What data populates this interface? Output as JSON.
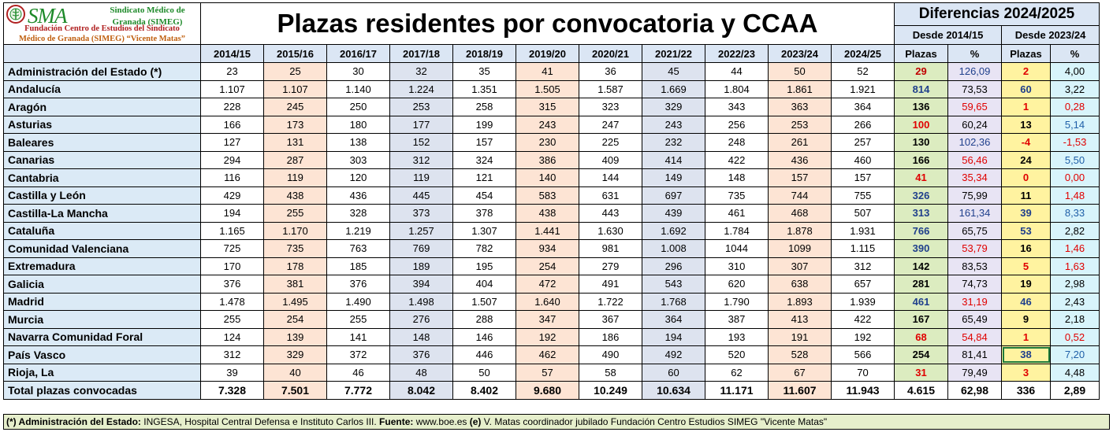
{
  "logo": {
    "brand": "SMA",
    "sub_line1": "Sindicato Médico de",
    "sub_line2": "Granada (SIMEG)",
    "foundation_line1": "Fundación Centro de Estudios del Sindicato",
    "foundation_line2": "Médico de Granada (SIMEG) “Vicente Matas”"
  },
  "title": "Plazas residentes por convocatoria y CCAA",
  "diff_header": {
    "title": "Diferencias 2024/2025",
    "since_a": "Desde 2014/15",
    "since_b": "Desde 2023/24",
    "col_plazas": "Plazas",
    "col_pct": "%"
  },
  "years": [
    "2014/15",
    "2015/16",
    "2016/17",
    "2017/18",
    "2018/19",
    "2019/20",
    "2020/21",
    "2021/22",
    "2022/23",
    "2023/24",
    "2024/25"
  ],
  "rows": [
    {
      "name": "Administración del Estado (*)",
      "values": [
        "23",
        "25",
        "30",
        "32",
        "35",
        "41",
        "36",
        "45",
        "44",
        "50",
        "52"
      ],
      "d1": "29",
      "d1c": "#c00000",
      "p1": "126,09",
      "p1c": "#1f3f8c",
      "d2": "2",
      "d2c": "#e00000",
      "p2": "4,00",
      "p2c": "#000000"
    },
    {
      "name": "Andalucía",
      "values": [
        "1.107",
        "1.107",
        "1.140",
        "1.224",
        "1.351",
        "1.505",
        "1.587",
        "1.669",
        "1.804",
        "1.861",
        "1.921"
      ],
      "d1": "814",
      "d1c": "#1f3f8c",
      "p1": "73,53",
      "p1c": "#000000",
      "d2": "60",
      "d2c": "#1f3f8c",
      "p2": "3,22",
      "p2c": "#000000"
    },
    {
      "name": "Aragón",
      "values": [
        "228",
        "245",
        "250",
        "253",
        "258",
        "315",
        "323",
        "329",
        "343",
        "363",
        "364"
      ],
      "d1": "136",
      "d1c": "#000000",
      "p1": "59,65",
      "p1c": "#e00000",
      "d2": "1",
      "d2c": "#e00000",
      "p2": "0,28",
      "p2c": "#e00000"
    },
    {
      "name": "Asturias",
      "values": [
        "166",
        "173",
        "180",
        "177",
        "199",
        "243",
        "247",
        "243",
        "256",
        "253",
        "266"
      ],
      "d1": "100",
      "d1c": "#e00000",
      "p1": "60,24",
      "p1c": "#000000",
      "d2": "13",
      "d2c": "#000000",
      "p2": "5,14",
      "p2c": "#1f5fa8"
    },
    {
      "name": "Baleares",
      "values": [
        "127",
        "131",
        "138",
        "152",
        "157",
        "230",
        "225",
        "232",
        "248",
        "261",
        "257"
      ],
      "d1": "130",
      "d1c": "#000000",
      "p1": "102,36",
      "p1c": "#1f3f8c",
      "d2": "-4",
      "d2c": "#e00000",
      "p2": "-1,53",
      "p2c": "#e00000"
    },
    {
      "name": "Canarias",
      "values": [
        "294",
        "287",
        "303",
        "312",
        "324",
        "386",
        "409",
        "414",
        "422",
        "436",
        "460"
      ],
      "d1": "166",
      "d1c": "#000000",
      "p1": "56,46",
      "p1c": "#e00000",
      "d2": "24",
      "d2c": "#000000",
      "p2": "5,50",
      "p2c": "#1f5fa8"
    },
    {
      "name": "Cantabria",
      "values": [
        "116",
        "119",
        "120",
        "119",
        "121",
        "140",
        "144",
        "149",
        "148",
        "157",
        "157"
      ],
      "d1": "41",
      "d1c": "#e00000",
      "p1": "35,34",
      "p1c": "#e00000",
      "d2": "0",
      "d2c": "#e00000",
      "p2": "0,00",
      "p2c": "#e00000"
    },
    {
      "name": "Castilla y León",
      "values": [
        "429",
        "438",
        "436",
        "445",
        "454",
        "583",
        "631",
        "697",
        "735",
        "744",
        "755"
      ],
      "d1": "326",
      "d1c": "#1f3f8c",
      "p1": "75,99",
      "p1c": "#000000",
      "d2": "11",
      "d2c": "#000000",
      "p2": "1,48",
      "p2c": "#e00000"
    },
    {
      "name": "Castilla-La Mancha",
      "values": [
        "194",
        "255",
        "328",
        "373",
        "378",
        "438",
        "443",
        "439",
        "461",
        "468",
        "507"
      ],
      "d1": "313",
      "d1c": "#1f3f8c",
      "p1": "161,34",
      "p1c": "#1f3f8c",
      "d2": "39",
      "d2c": "#1f3f8c",
      "p2": "8,33",
      "p2c": "#1f5fa8"
    },
    {
      "name": "Cataluña",
      "values": [
        "1.165",
        "1.170",
        "1.219",
        "1.257",
        "1.307",
        "1.441",
        "1.630",
        "1.692",
        "1.784",
        "1.878",
        "1.931"
      ],
      "d1": "766",
      "d1c": "#1f3f8c",
      "p1": "65,75",
      "p1c": "#000000",
      "d2": "53",
      "d2c": "#1f3f8c",
      "p2": "2,82",
      "p2c": "#000000"
    },
    {
      "name": "Comunidad Valenciana",
      "values": [
        "725",
        "735",
        "763",
        "769",
        "782",
        "934",
        "981",
        "1.008",
        "1044",
        "1099",
        "1.115"
      ],
      "d1": "390",
      "d1c": "#1f3f8c",
      "p1": "53,79",
      "p1c": "#e00000",
      "d2": "16",
      "d2c": "#000000",
      "p2": "1,46",
      "p2c": "#e00000"
    },
    {
      "name": "Extremadura",
      "values": [
        "170",
        "178",
        "185",
        "189",
        "195",
        "254",
        "279",
        "296",
        "310",
        "307",
        "312"
      ],
      "d1": "142",
      "d1c": "#000000",
      "p1": "83,53",
      "p1c": "#000000",
      "d2": "5",
      "d2c": "#e00000",
      "p2": "1,63",
      "p2c": "#e00000"
    },
    {
      "name": "Galicia",
      "values": [
        "376",
        "381",
        "376",
        "394",
        "404",
        "472",
        "491",
        "543",
        "620",
        "638",
        "657"
      ],
      "d1": "281",
      "d1c": "#000000",
      "p1": "74,73",
      "p1c": "#000000",
      "d2": "19",
      "d2c": "#000000",
      "p2": "2,98",
      "p2c": "#000000"
    },
    {
      "name": "Madrid",
      "values": [
        "1.478",
        "1.495",
        "1.490",
        "1.498",
        "1.507",
        "1.640",
        "1.722",
        "1.768",
        "1.790",
        "1.893",
        "1.939"
      ],
      "d1": "461",
      "d1c": "#1f3f8c",
      "p1": "31,19",
      "p1c": "#e00000",
      "d2": "46",
      "d2c": "#1f3f8c",
      "p2": "2,43",
      "p2c": "#000000"
    },
    {
      "name": "Murcia",
      "values": [
        "255",
        "254",
        "255",
        "276",
        "288",
        "347",
        "367",
        "364",
        "387",
        "413",
        "422"
      ],
      "d1": "167",
      "d1c": "#000000",
      "p1": "65,49",
      "p1c": "#000000",
      "d2": "9",
      "d2c": "#000000",
      "p2": "2,18",
      "p2c": "#000000"
    },
    {
      "name": "Navarra Comunidad Foral",
      "values": [
        "124",
        "139",
        "141",
        "148",
        "146",
        "192",
        "186",
        "194",
        "193",
        "191",
        "192"
      ],
      "d1": "68",
      "d1c": "#e00000",
      "p1": "54,84",
      "p1c": "#e00000",
      "d2": "1",
      "d2c": "#e00000",
      "p2": "0,52",
      "p2c": "#e00000"
    },
    {
      "name": "País Vasco",
      "values": [
        "312",
        "329",
        "372",
        "376",
        "446",
        "462",
        "490",
        "492",
        "520",
        "528",
        "566"
      ],
      "d1": "254",
      "d1c": "#000000",
      "p1": "81,41",
      "p1c": "#000000",
      "d2": "38",
      "d2c": "#1f3f8c",
      "p2": "7,20",
      "p2c": "#1f5fa8"
    },
    {
      "name": "Rioja, La",
      "values": [
        "39",
        "40",
        "46",
        "48",
        "50",
        "57",
        "58",
        "60",
        "62",
        "67",
        "70"
      ],
      "d1": "31",
      "d1c": "#e00000",
      "p1": "79,49",
      "p1c": "#000000",
      "d2": "3",
      "d2c": "#e00000",
      "p2": "4,48",
      "p2c": "#000000"
    }
  ],
  "total": {
    "name": "Total plazas convocadas",
    "values": [
      "7.328",
      "7.501",
      "7.772",
      "8.042",
      "8.402",
      "9.680",
      "10.249",
      "10.634",
      "11.171",
      "11.607",
      "11.943"
    ],
    "d1": "4.615",
    "p1": "62,98",
    "d2": "336",
    "p2": "2,89"
  },
  "footer": {
    "note_label": "(*) Administración del Estado:",
    "note_text": " INGESA, Hospital Central Defensa e Instituto Carlos III. ",
    "source_label": "Fuente:",
    "source_text": " www.boe.es ",
    "e_label": "(e)",
    "e_text": " V. Matas coordinador jubilado Fundación Centro Estudios SIMEG \"Vicente Matas\""
  }
}
